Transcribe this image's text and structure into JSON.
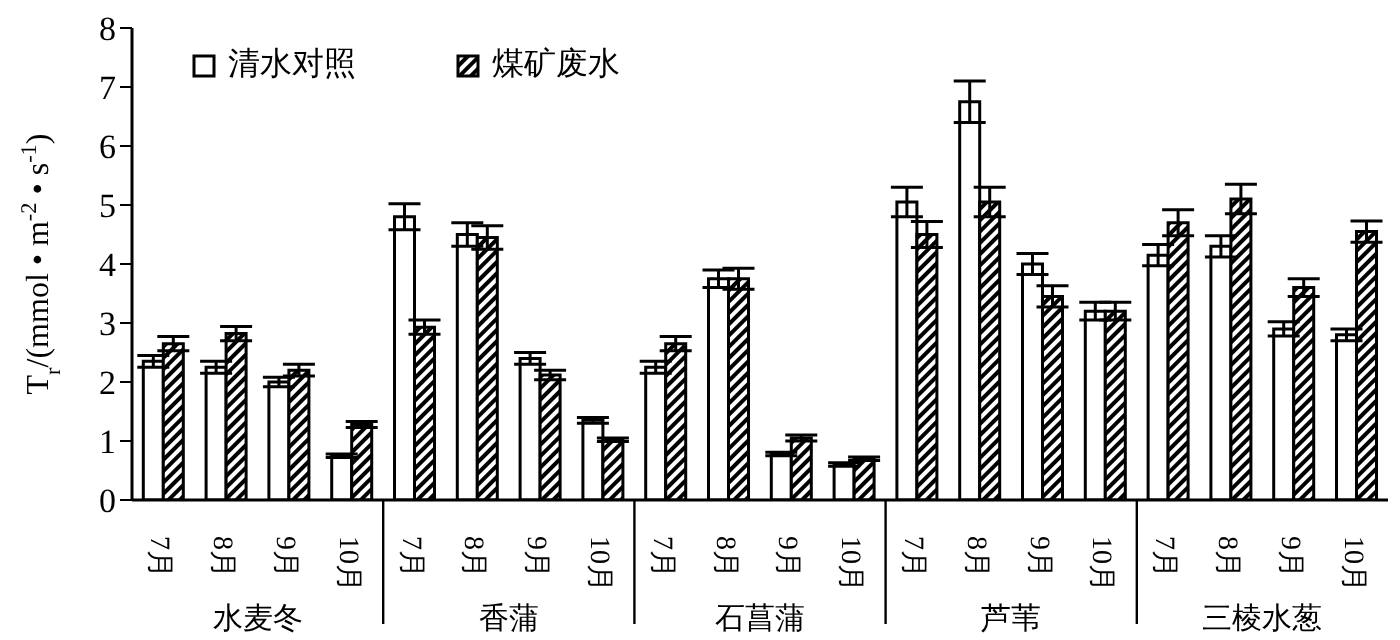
{
  "chart_data": {
    "type": "bar",
    "ylabel": "T$_{r}$/(mmol • m$^{-2}$ • s$^{-1}$)",
    "categories": [
      "7月",
      "8月",
      "9月",
      "10月",
      "7月",
      "8月",
      "9月",
      "10月",
      "7月",
      "8月",
      "9月",
      "10月",
      "7月",
      "8月",
      "9月",
      "10月",
      "7月",
      "8月",
      "9月",
      "10月"
    ],
    "annotations": [
      "水麦冬",
      "香蒲",
      "石菖蒲",
      "芦苇",
      "三棱水葱"
    ],
    "series": [
      {
        "name": "清水对照",
        "color": "#ffffff",
        "values": [
          2.35,
          2.25,
          2.0,
          0.75,
          4.8,
          4.5,
          2.4,
          1.35,
          2.25,
          3.75,
          0.78,
          0.6,
          5.05,
          6.75,
          4.0,
          3.2,
          4.15,
          4.3,
          2.9,
          2.8
        ],
        "errors": [
          0.1,
          0.1,
          0.08,
          0.03,
          0.22,
          0.2,
          0.1,
          0.05,
          0.1,
          0.15,
          0.03,
          0.03,
          0.25,
          0.35,
          0.18,
          0.15,
          0.18,
          0.18,
          0.12,
          0.1
        ]
      },
      {
        "name": "煤矿废水",
        "color": "#000000",
        "values": [
          2.65,
          2.82,
          2.2,
          1.28,
          2.93,
          4.45,
          2.12,
          1.02,
          2.65,
          3.75,
          1.05,
          0.7,
          4.5,
          5.05,
          3.45,
          3.2,
          4.7,
          5.1,
          3.6,
          4.55
        ],
        "errors": [
          0.12,
          0.12,
          0.1,
          0.05,
          0.12,
          0.2,
          0.08,
          0.03,
          0.12,
          0.18,
          0.05,
          0.03,
          0.22,
          0.25,
          0.18,
          0.15,
          0.22,
          0.25,
          0.15,
          0.18
        ]
      }
    ],
    "ylim": [
      0,
      8
    ],
    "yticks": [
      0,
      1,
      2,
      3,
      4,
      5,
      6,
      7,
      8
    ],
    "grid": false,
    "legend": "top left"
  }
}
